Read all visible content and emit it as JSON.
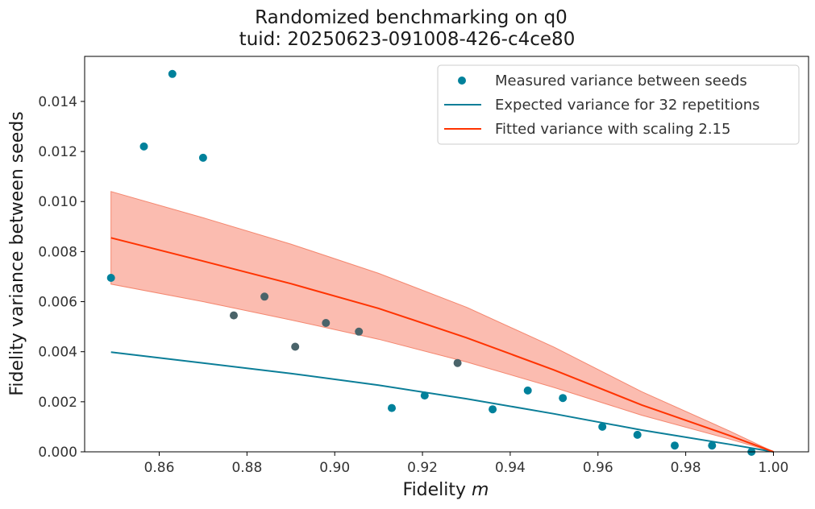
{
  "chart_data": {
    "type": "scatter",
    "title": "Randomized benchmarking on q0",
    "subtitle": "tuid: 20250623-091008-426-c4ce80",
    "xlabel_prefix": "Fidelity ",
    "xlabel_symbol": "m",
    "ylabel": "Fidelity variance between seeds",
    "xlim": [
      0.843,
      1.008
    ],
    "ylim": [
      0.0,
      0.0158
    ],
    "xticks": [
      0.86,
      0.88,
      0.9,
      0.92,
      0.94,
      0.96,
      0.98,
      1.0
    ],
    "xtick_labels": [
      "0.86",
      "0.88",
      "0.90",
      "0.92",
      "0.94",
      "0.96",
      "0.98",
      "1.00"
    ],
    "yticks": [
      0.0,
      0.002,
      0.004,
      0.006,
      0.008,
      0.01,
      0.012,
      0.014
    ],
    "ytick_labels": [
      "0.000",
      "0.002",
      "0.004",
      "0.006",
      "0.008",
      "0.010",
      "0.012",
      "0.014"
    ],
    "legend_position": "top-right",
    "legend": [
      "Measured variance between seeds",
      "Expected variance for 32 repetitions",
      "Fitted variance with scaling 2.15"
    ],
    "measured": {
      "x": [
        0.849,
        0.8565,
        0.863,
        0.87,
        0.877,
        0.884,
        0.891,
        0.898,
        0.9055,
        0.913,
        0.9205,
        0.928,
        0.936,
        0.944,
        0.952,
        0.961,
        0.969,
        0.9775,
        0.986,
        0.995
      ],
      "y": [
        0.00695,
        0.0122,
        0.0151,
        0.01175,
        0.00545,
        0.0062,
        0.0042,
        0.00515,
        0.0048,
        0.00175,
        0.00225,
        0.00355,
        0.0017,
        0.00245,
        0.00215,
        0.001,
        0.00068,
        0.00025,
        0.00025,
        0.0
      ]
    },
    "expected": {
      "x": [
        0.849,
        0.87,
        0.89,
        0.91,
        0.93,
        0.95,
        0.97,
        0.99,
        1.0
      ],
      "y": [
        0.00398,
        0.00355,
        0.00313,
        0.00266,
        0.00212,
        0.00152,
        0.00087,
        0.0003,
        0.0
      ]
    },
    "fitted": {
      "x": [
        0.849,
        0.87,
        0.89,
        0.91,
        0.93,
        0.95,
        0.97,
        0.99,
        1.0
      ],
      "y": [
        0.00855,
        0.00762,
        0.00672,
        0.00573,
        0.00456,
        0.00327,
        0.00187,
        0.00065,
        0.0
      ],
      "band_upper": [
        0.0104,
        0.00935,
        0.0083,
        0.00713,
        0.00578,
        0.00418,
        0.0024,
        0.00083,
        0.0
      ],
      "band_lower": [
        0.0067,
        0.006,
        0.00527,
        0.0045,
        0.00359,
        0.00257,
        0.00146,
        0.00051,
        0.0
      ]
    },
    "colors": {
      "measured": "#00819b",
      "measured_overlap": "#4a646a",
      "expected": "#0b7e98",
      "fitted": "#ff3300",
      "band_fill": "#f9a08e",
      "band_edge": "#f4876f"
    }
  }
}
